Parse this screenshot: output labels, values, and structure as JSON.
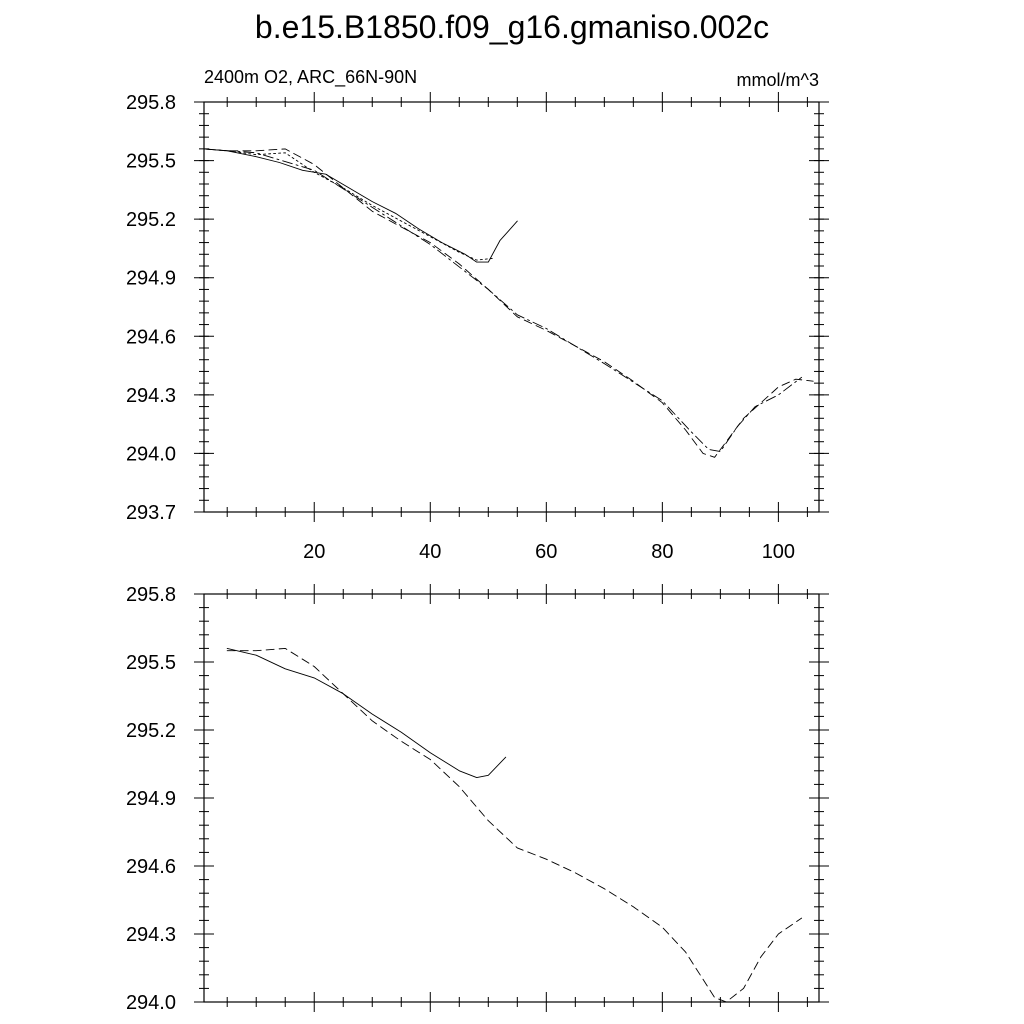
{
  "title": "b.e15.B1850.f09_g16.gmaniso.002c",
  "panels": [
    {
      "left_label": "2400m O2, ARC_66N-90N",
      "right_label": "mmol/m^3",
      "x_tick_labels": [
        "20",
        "40",
        "60",
        "80",
        "100"
      ],
      "y_tick_labels": [
        "295.8",
        "295.5",
        "295.2",
        "294.9",
        "294.6",
        "294.3",
        "294.0",
        "293.7"
      ]
    },
    {
      "left_label": "",
      "right_label": "",
      "x_tick_labels": [],
      "y_tick_labels": [
        "295.8",
        "295.5",
        "295.2",
        "294.9",
        "294.6",
        "294.3",
        "294.0"
      ]
    }
  ],
  "chart_data": [
    {
      "type": "line",
      "title": "b.e15.B1850.f09_g16.gmaniso.002c",
      "subtitle_left": "2400m O2, ARC_66N-90N",
      "subtitle_right": "mmol/m^3",
      "xlim": [
        1,
        107
      ],
      "ylim": [
        293.7,
        295.8
      ],
      "x_ticks": [
        20,
        40,
        60,
        80,
        100
      ],
      "y_ticks": [
        295.8,
        295.5,
        295.2,
        294.9,
        294.6,
        294.3,
        294.0,
        293.7
      ],
      "grid": false,
      "series": [
        {
          "dash": "solid",
          "x": [
            1,
            5,
            10,
            14,
            18,
            22,
            26,
            30,
            34,
            38,
            42,
            46,
            48,
            50,
            52,
            55
          ],
          "y": [
            295.56,
            295.55,
            295.52,
            295.49,
            295.45,
            295.43,
            295.36,
            295.29,
            295.23,
            295.15,
            295.08,
            295.02,
            294.98,
            294.98,
            295.09,
            295.19
          ]
        },
        {
          "dash": "dotted",
          "x": [
            1,
            5,
            10,
            15,
            20,
            25,
            30,
            35,
            40,
            45,
            48,
            51
          ],
          "y": [
            295.56,
            295.55,
            295.53,
            295.54,
            295.44,
            295.36,
            295.27,
            295.19,
            295.11,
            295.03,
            294.99,
            295.0
          ]
        },
        {
          "dash": "dashed",
          "x": [
            1,
            5,
            10,
            15,
            20,
            25,
            30,
            35,
            40,
            45,
            50,
            55,
            60,
            65,
            70,
            75,
            80,
            84,
            87,
            89,
            91,
            94,
            97,
            100,
            103,
            106
          ],
          "y": [
            295.56,
            295.55,
            295.55,
            295.56,
            295.48,
            295.36,
            295.24,
            295.16,
            295.08,
            294.97,
            294.84,
            294.7,
            294.63,
            294.55,
            294.47,
            294.37,
            294.26,
            294.12,
            294.0,
            293.98,
            294.06,
            294.18,
            294.26,
            294.34,
            294.38,
            294.37
          ]
        },
        {
          "dash": "dashdot",
          "x": [
            1,
            10,
            20,
            30,
            40,
            50,
            55,
            60,
            70,
            80,
            85,
            88,
            90,
            93,
            96,
            100,
            104
          ],
          "y": [
            295.56,
            295.54,
            295.45,
            295.26,
            295.07,
            294.84,
            294.71,
            294.64,
            294.46,
            294.27,
            294.11,
            294.02,
            294.01,
            294.14,
            294.24,
            294.3,
            294.39
          ]
        }
      ]
    },
    {
      "type": "line",
      "xlim": [
        1,
        107
      ],
      "ylim": [
        294.0,
        295.8
      ],
      "x_ticks": [
        20,
        40,
        60,
        80,
        100
      ],
      "y_ticks": [
        295.8,
        295.5,
        295.2,
        294.9,
        294.6,
        294.3,
        294.0
      ],
      "grid": false,
      "series": [
        {
          "dash": "solid",
          "x": [
            5,
            10,
            15,
            20,
            25,
            30,
            35,
            40,
            45,
            48,
            50,
            53
          ],
          "y": [
            295.56,
            295.53,
            295.47,
            295.43,
            295.36,
            295.27,
            295.19,
            295.1,
            295.02,
            294.99,
            295.0,
            295.08
          ]
        },
        {
          "dash": "dashed",
          "x": [
            5,
            10,
            15,
            20,
            25,
            30,
            35,
            40,
            45,
            50,
            55,
            60,
            65,
            70,
            75,
            80,
            84,
            87,
            89,
            91,
            94,
            97,
            100,
            104
          ],
          "y": [
            295.55,
            295.55,
            295.56,
            295.48,
            295.36,
            295.24,
            295.15,
            295.07,
            294.95,
            294.8,
            294.68,
            294.63,
            294.57,
            294.5,
            294.42,
            294.33,
            294.22,
            294.1,
            294.02,
            294.0,
            294.06,
            294.2,
            294.3,
            294.37
          ]
        }
      ]
    }
  ]
}
